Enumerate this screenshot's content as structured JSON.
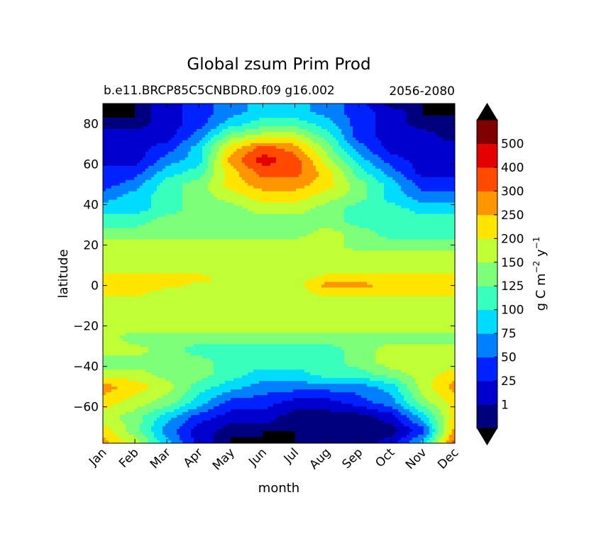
{
  "chart_data": {
    "type": "contour",
    "title": "Global zsum Prim Prod",
    "subtitle_left": "b.e11.BRCP85C5CNBDRD.f09 g16.002",
    "subtitle_right": "2056-2080",
    "xlabel": "month",
    "ylabel": "latitude",
    "x_categories": [
      "Jan",
      "Feb",
      "Mar",
      "Apr",
      "May",
      "Jun",
      "Jul",
      "Aug",
      "Sep",
      "Oct",
      "Nov",
      "Dec"
    ],
    "ylim": [
      -78,
      90
    ],
    "y_ticks": [
      -60,
      -40,
      -20,
      0,
      20,
      40,
      60,
      80
    ],
    "colorbar": {
      "label_main": "g C m",
      "label_exp1": "−2",
      "label_mid": " y",
      "label_exp2": "−1",
      "levels": [
        "1",
        "25",
        "50",
        "75",
        "100",
        "125",
        "150",
        "200",
        "250",
        "300",
        "400",
        "500"
      ],
      "colors": [
        "#00007f",
        "#0000cd",
        "#0022ff",
        "#0080ff",
        "#00dcfe",
        "#39ffbd",
        "#7dff7a",
        "#c0ff36",
        "#ffe500",
        "#ff9500",
        "#ff4a00",
        "#e30000",
        "#800000"
      ],
      "extend": "both",
      "under_color": "#000000",
      "over_color": "#000000"
    },
    "band_index_grid": {
      "lats": [
        -78,
        -72,
        -65,
        -58,
        -50,
        -44,
        -38,
        -32,
        -26,
        -20,
        -14,
        -8,
        -3,
        0,
        3,
        8,
        14,
        20,
        26,
        32,
        38,
        44,
        50,
        56,
        62,
        68,
        74,
        80,
        86,
        90
      ],
      "rows": [
        [
          9,
          7,
          4,
          1,
          0,
          0,
          0,
          0,
          0,
          1,
          4,
          10
        ],
        [
          8,
          6,
          3,
          1,
          0,
          0,
          0,
          0,
          0,
          0,
          2,
          9
        ],
        [
          7,
          6,
          4,
          2,
          1,
          1,
          0,
          0,
          0,
          1,
          4,
          8
        ],
        [
          8,
          7,
          6,
          4,
          2,
          2,
          1,
          1,
          2,
          3,
          6,
          8
        ],
        [
          9,
          8,
          7,
          5,
          4,
          3,
          3,
          3,
          3,
          4,
          7,
          9
        ],
        [
          7,
          7,
          6,
          6,
          5,
          4,
          4,
          5,
          5,
          6,
          7,
          8
        ],
        [
          6,
          6,
          6,
          6,
          5,
          5,
          5,
          5,
          6,
          7,
          7,
          7
        ],
        [
          7,
          7,
          6,
          5,
          5,
          5,
          5,
          5,
          6,
          7,
          7,
          7
        ],
        [
          7,
          6,
          6,
          6,
          6,
          6,
          6,
          6,
          6,
          6,
          6,
          6
        ],
        [
          7,
          7,
          7,
          7,
          7,
          7,
          7,
          7,
          7,
          7,
          7,
          7
        ],
        [
          7,
          7,
          7,
          7,
          7,
          7,
          7,
          7,
          7,
          7,
          7,
          7
        ],
        [
          7,
          7,
          7,
          7,
          7,
          7,
          7,
          7,
          7,
          7,
          7,
          7
        ],
        [
          8,
          8,
          7,
          7,
          7,
          7,
          7,
          8,
          8,
          8,
          8,
          8
        ],
        [
          8,
          8,
          8,
          7,
          7,
          7,
          7,
          9,
          9,
          8,
          8,
          8
        ],
        [
          8,
          8,
          8,
          8,
          7,
          7,
          7,
          8,
          8,
          8,
          8,
          8
        ],
        [
          7,
          7,
          7,
          7,
          7,
          7,
          7,
          7,
          7,
          7,
          7,
          7
        ],
        [
          7,
          7,
          7,
          7,
          7,
          7,
          7,
          7,
          7,
          7,
          7,
          7
        ],
        [
          7,
          7,
          7,
          7,
          7,
          7,
          7,
          7,
          6,
          6,
          6,
          6
        ],
        [
          6,
          6,
          6,
          6,
          6,
          6,
          6,
          7,
          6,
          5,
          5,
          5
        ],
        [
          5,
          5,
          6,
          6,
          6,
          6,
          6,
          6,
          5,
          5,
          5,
          5
        ],
        [
          4,
          4,
          5,
          6,
          6,
          7,
          7,
          6,
          5,
          5,
          4,
          4
        ],
        [
          3,
          4,
          5,
          6,
          7,
          8,
          8,
          7,
          6,
          4,
          3,
          3
        ],
        [
          2,
          3,
          5,
          6,
          8,
          9,
          9,
          8,
          6,
          4,
          2,
          2
        ],
        [
          2,
          2,
          4,
          5,
          8,
          10,
          10,
          8,
          5,
          3,
          1,
          1
        ],
        [
          1,
          1,
          3,
          4,
          9,
          11,
          10,
          7,
          4,
          2,
          1,
          1
        ],
        [
          1,
          1,
          2,
          4,
          8,
          10,
          9,
          6,
          3,
          1,
          1,
          1
        ],
        [
          1,
          1,
          1,
          3,
          6,
          7,
          7,
          5,
          2,
          1,
          1,
          0
        ],
        [
          0,
          0,
          1,
          2,
          4,
          5,
          5,
          4,
          2,
          1,
          0,
          0
        ],
        [
          0,
          0,
          1,
          2,
          3,
          4,
          4,
          3,
          2,
          1,
          0,
          0
        ],
        [
          0,
          0,
          1,
          2,
          3,
          4,
          4,
          3,
          2,
          0,
          0,
          0
        ]
      ]
    },
    "masked_regions": [
      {
        "months": [
          "Jan",
          "Feb"
        ],
        "lat_range": [
          83,
          90
        ]
      },
      {
        "months": [
          "Nov",
          "Dec"
        ],
        "lat_range": [
          84,
          90
        ]
      },
      {
        "months": [
          "May",
          "Jun"
        ],
        "lat_range": [
          -78,
          -75
        ]
      },
      {
        "months": [
          "Jun",
          "Jul"
        ],
        "lat_range": [
          -78,
          -72
        ]
      }
    ]
  }
}
